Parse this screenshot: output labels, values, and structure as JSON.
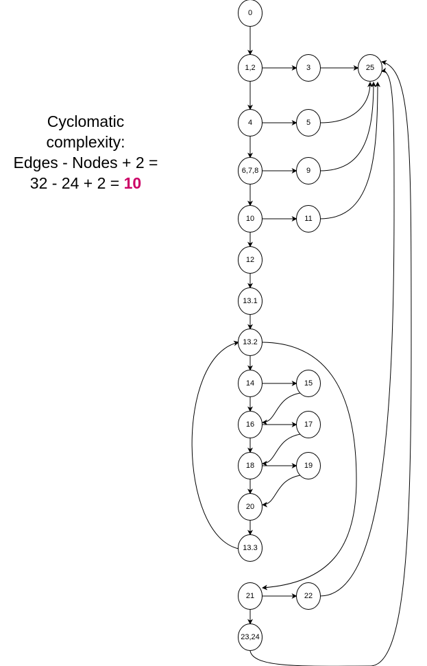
{
  "caption": {
    "line1": "Cyclomatic",
    "line2": "complexity:",
    "line3": "Edges - Nodes + 2 =",
    "line4_prefix": "32 - 24 + 2 = ",
    "line4_result": "10",
    "result_color": "#cc0066"
  },
  "nodes": [
    {
      "id": "n0",
      "label": "0"
    },
    {
      "id": "n12a",
      "label": "1,2"
    },
    {
      "id": "n3",
      "label": "3"
    },
    {
      "id": "n25",
      "label": "25"
    },
    {
      "id": "n4",
      "label": "4"
    },
    {
      "id": "n5",
      "label": "5"
    },
    {
      "id": "n678",
      "label": "6,7,8"
    },
    {
      "id": "n9",
      "label": "9"
    },
    {
      "id": "n10",
      "label": "10"
    },
    {
      "id": "n11",
      "label": "11"
    },
    {
      "id": "n12",
      "label": "12"
    },
    {
      "id": "n131",
      "label": "13.1"
    },
    {
      "id": "n132",
      "label": "13.2"
    },
    {
      "id": "n14",
      "label": "14"
    },
    {
      "id": "n15",
      "label": "15"
    },
    {
      "id": "n16",
      "label": "16"
    },
    {
      "id": "n17",
      "label": "17"
    },
    {
      "id": "n18",
      "label": "18"
    },
    {
      "id": "n19",
      "label": "19"
    },
    {
      "id": "n20",
      "label": "20"
    },
    {
      "id": "n133",
      "label": "13.3"
    },
    {
      "id": "n21",
      "label": "21"
    },
    {
      "id": "n22",
      "label": "22"
    },
    {
      "id": "n2324",
      "label": "23,24"
    }
  ],
  "edges": [
    {
      "from": "n0",
      "to": "n12a"
    },
    {
      "from": "n12a",
      "to": "n3"
    },
    {
      "from": "n3",
      "to": "n25"
    },
    {
      "from": "n12a",
      "to": "n4"
    },
    {
      "from": "n4",
      "to": "n5"
    },
    {
      "from": "n5",
      "to": "n25"
    },
    {
      "from": "n4",
      "to": "n678"
    },
    {
      "from": "n678",
      "to": "n9"
    },
    {
      "from": "n9",
      "to": "n25"
    },
    {
      "from": "n678",
      "to": "n10"
    },
    {
      "from": "n10",
      "to": "n11"
    },
    {
      "from": "n11",
      "to": "n25"
    },
    {
      "from": "n10",
      "to": "n12"
    },
    {
      "from": "n12",
      "to": "n131"
    },
    {
      "from": "n131",
      "to": "n132"
    },
    {
      "from": "n132",
      "to": "n14"
    },
    {
      "from": "n132",
      "to": "n21"
    },
    {
      "from": "n14",
      "to": "n15"
    },
    {
      "from": "n15",
      "to": "n16"
    },
    {
      "from": "n14",
      "to": "n16"
    },
    {
      "from": "n16",
      "to": "n17"
    },
    {
      "from": "n17",
      "to": "n18"
    },
    {
      "from": "n16",
      "to": "n18"
    },
    {
      "from": "n18",
      "to": "n19"
    },
    {
      "from": "n19",
      "to": "n20"
    },
    {
      "from": "n18",
      "to": "n20"
    },
    {
      "from": "n20",
      "to": "n133"
    },
    {
      "from": "n133",
      "to": "n132"
    },
    {
      "from": "n21",
      "to": "n22"
    },
    {
      "from": "n22",
      "to": "n25"
    },
    {
      "from": "n21",
      "to": "n2324"
    },
    {
      "from": "n2324",
      "to": "n25"
    }
  ]
}
